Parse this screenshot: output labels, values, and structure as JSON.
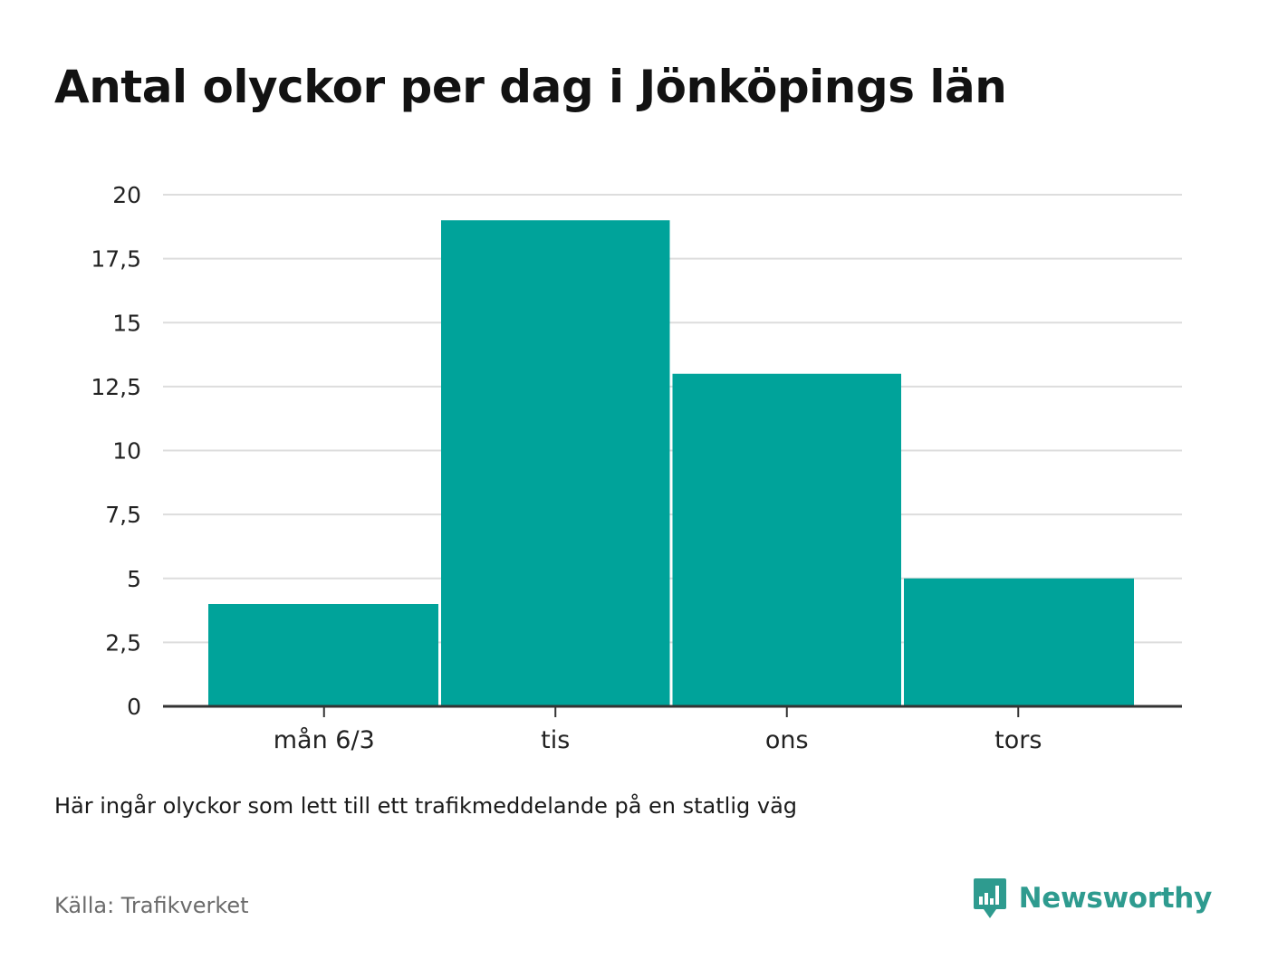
{
  "header": {
    "title": "Antal olyckor per dag i Jönköpings län"
  },
  "chart_data": {
    "type": "bar",
    "categories": [
      "mån 6/3",
      "tis",
      "ons",
      "tors"
    ],
    "values": [
      4,
      19,
      13,
      5
    ],
    "ylim": [
      0,
      20
    ],
    "yticks": [
      0,
      2.5,
      5,
      7.5,
      10,
      12.5,
      15,
      17.5,
      20
    ],
    "ytick_labels": [
      "0",
      "2,5",
      "5",
      "7,5",
      "10",
      "12,5",
      "15",
      "17,5",
      "20"
    ],
    "grid": true,
    "bar_color": "#00a39a"
  },
  "footer": {
    "note": "Här ingår olyckor som lett till ett trafikmeddelande på en statlig väg",
    "source": "Källa: Trafikverket",
    "brand": "Newsworthy",
    "brand_color": "#2e9b8f",
    "brand_icon": "newsworthy-logo-icon"
  }
}
